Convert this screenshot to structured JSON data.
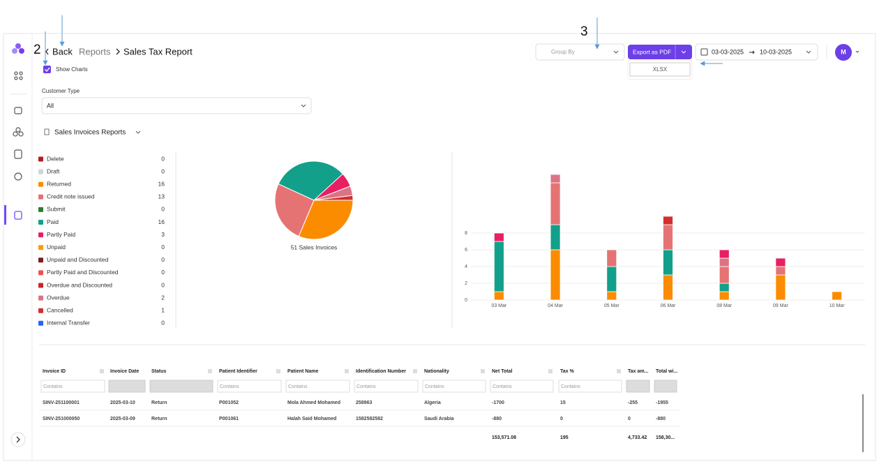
{
  "annotations": [
    "2",
    "3"
  ],
  "header": {
    "back": "Back",
    "breadcrumb": [
      "Reports",
      "Sales Tax Report"
    ],
    "group_by": "Group By",
    "export": "Export as PDF",
    "export_option": "XLSX",
    "date_from": "03-03-2025",
    "date_to": "10-03-2025",
    "avatar": "M"
  },
  "filters": {
    "show_charts": "Show Charts",
    "customer_type_label": "Customer Type",
    "customer_type": "All",
    "report": "Sales Invoices Reports"
  },
  "chart_data": [
    {
      "type": "pie",
      "label": "51 Sales Invoices",
      "categories": [
        "Delete",
        "Draft",
        "Returned",
        "Credit note issued",
        "Submit",
        "Paid",
        "Partly Paid",
        "Unpaid",
        "Unpaid and Discounted",
        "Partly Paid and Discounted",
        "Overdue and Discounted",
        "Overdue",
        "Cancelled",
        "Internal Transfer"
      ],
      "values": [
        0,
        0,
        16,
        13,
        0,
        16,
        3,
        0,
        0,
        0,
        0,
        2,
        1,
        0
      ],
      "colors": [
        "#b71c1c",
        "#d4d4d4",
        "#fb8c00",
        "#e57373",
        "#2e7d32",
        "#13a08a",
        "#e91e63",
        "#f59e0b",
        "#7f1d1d",
        "#ef5350",
        "#c62828",
        "#dc7384",
        "#d32f2f",
        "#2962ff"
      ]
    },
    {
      "type": "bar",
      "categories": [
        "03 Mar",
        "04 Mar",
        "05 Mar",
        "06 Mar",
        "08 Mar",
        "09 Mar",
        "10 Mar"
      ],
      "ylim": [
        0,
        15
      ],
      "yticks": [
        0,
        2,
        4,
        6,
        8
      ],
      "grid": true,
      "series": [
        {
          "color": "#fb8c00",
          "values": [
            1,
            6,
            1,
            3,
            1,
            3,
            1
          ]
        },
        {
          "color": "#13a08a",
          "values": [
            6,
            3,
            3,
            3,
            1,
            0,
            0
          ]
        },
        {
          "color": "#e57373",
          "values": [
            0,
            5,
            2,
            3,
            2,
            1,
            0
          ]
        },
        {
          "color": "#dc7384",
          "values": [
            0,
            1,
            0,
            0,
            1,
            0,
            0
          ]
        },
        {
          "color": "#e91e63",
          "values": [
            1,
            0,
            0,
            0,
            1,
            1,
            0
          ]
        },
        {
          "color": "#d32f2f",
          "values": [
            0,
            0,
            0,
            1,
            0,
            0,
            0
          ]
        }
      ]
    }
  ],
  "table": {
    "headers": [
      "Invoice ID",
      "Invoice Date",
      "Status",
      "Patient Identifier",
      "Patient Name",
      "Identification Number",
      "Nationality",
      "Net Total",
      "Tax %",
      "Tax am...",
      "Total wi..."
    ],
    "filter_placeholder": "Contains",
    "rows": [
      [
        "SINV-251100001",
        "2025-03-10",
        "Return",
        "P001052",
        "Mola Ahmed Mohamed",
        "258963",
        "Algeria",
        "-1700",
        "15",
        "-255",
        "-1955"
      ],
      [
        "SINV-251000050",
        "2025-03-09",
        "Return",
        "P001061",
        "Halah Said Mohamed",
        "1582582582",
        "Saudi Arabia",
        "-880",
        "0",
        "0",
        "-880"
      ]
    ],
    "totals": [
      null,
      null,
      null,
      null,
      null,
      null,
      null,
      "153,571.08",
      "195",
      "4,733.42",
      "158,30..."
    ]
  }
}
